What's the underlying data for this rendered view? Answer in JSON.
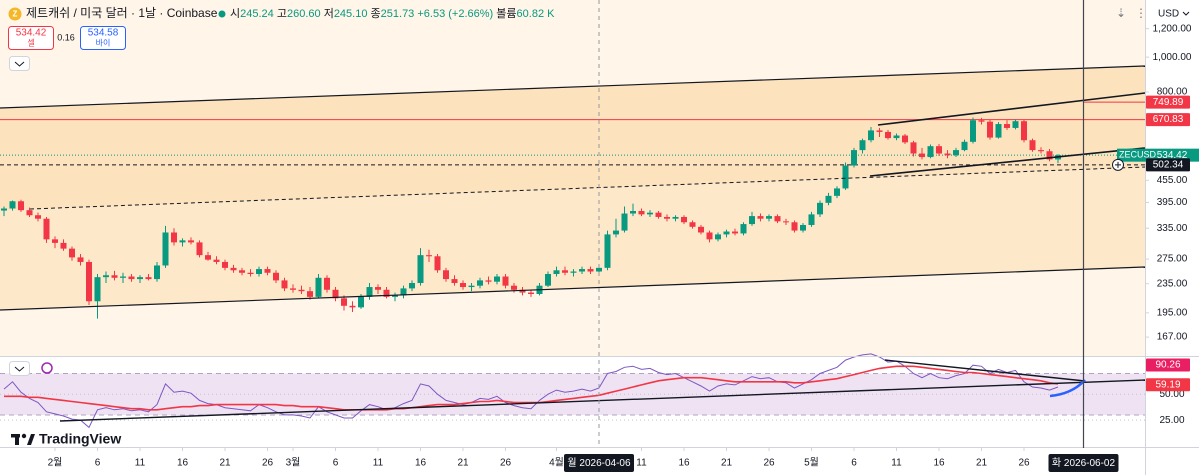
{
  "header": {
    "symbol": "제트캐쉬 / 미국 달러 · 1날 · Coinbase",
    "ohlc": [
      {
        "key": "시",
        "value": "245.24"
      },
      {
        "key": "고",
        "value": "260.60"
      },
      {
        "key": "저",
        "value": "245.10"
      },
      {
        "key": "종",
        "value": "251.73"
      }
    ],
    "change": "+6.53 (+2.66%)",
    "volume_key": "볼륨",
    "volume": "60.82 K",
    "sell": {
      "price": "534.42",
      "label": "셀"
    },
    "spread": "0.16",
    "buy": {
      "price": "534.58",
      "label": "바이"
    },
    "currency": "USD"
  },
  "watermark": "TradingView",
  "chart_data": [
    {
      "type": "candlestick",
      "log_scale": true,
      "grid": false,
      "up_color": "#089981",
      "down_color": "#f23645",
      "x": [
        "2026-01-26",
        "2026-01-27",
        "2026-01-28",
        "2026-01-29",
        "2026-01-30",
        "2026-01-31",
        "2026-02-01",
        "2026-02-02",
        "2026-02-03",
        "2026-02-04",
        "2026-02-05",
        "2026-02-06",
        "2026-02-07",
        "2026-02-08",
        "2026-02-09",
        "2026-02-10",
        "2026-02-11",
        "2026-02-12",
        "2026-02-13",
        "2026-02-14",
        "2026-02-15",
        "2026-02-16",
        "2026-02-17",
        "2026-02-18",
        "2026-02-19",
        "2026-02-20",
        "2026-02-21",
        "2026-02-22",
        "2026-02-23",
        "2026-02-24",
        "2026-02-25",
        "2026-02-26",
        "2026-02-27",
        "2026-02-28",
        "2026-03-01",
        "2026-03-02",
        "2026-03-03",
        "2026-03-04",
        "2026-03-05",
        "2026-03-06",
        "2026-03-07",
        "2026-03-08",
        "2026-03-09",
        "2026-03-10",
        "2026-03-11",
        "2026-03-12",
        "2026-03-13",
        "2026-03-14",
        "2026-03-15",
        "2026-03-16",
        "2026-03-17",
        "2026-03-18",
        "2026-03-19",
        "2026-03-20",
        "2026-03-21",
        "2026-03-22",
        "2026-03-23",
        "2026-03-24",
        "2026-03-25",
        "2026-03-26",
        "2026-03-27",
        "2026-03-28",
        "2026-03-29",
        "2026-03-30",
        "2026-03-31",
        "2026-04-01",
        "2026-04-02",
        "2026-04-03",
        "2026-04-04",
        "2026-04-05",
        "2026-04-06",
        "2026-04-07",
        "2026-04-08",
        "2026-04-09",
        "2026-04-10",
        "2026-04-11",
        "2026-04-12",
        "2026-04-13",
        "2026-04-14",
        "2026-04-15",
        "2026-04-16",
        "2026-04-17",
        "2026-04-18",
        "2026-04-19",
        "2026-04-20",
        "2026-04-21",
        "2026-04-22",
        "2026-04-23",
        "2026-04-24",
        "2026-04-25",
        "2026-04-26",
        "2026-04-27",
        "2026-04-28",
        "2026-04-29",
        "2026-04-30",
        "2026-05-01",
        "2026-05-02",
        "2026-05-03",
        "2026-05-04",
        "2026-05-05",
        "2026-05-06",
        "2026-05-07",
        "2026-05-08",
        "2026-05-09",
        "2026-05-10",
        "2026-05-11",
        "2026-05-12",
        "2026-05-13",
        "2026-05-14",
        "2026-05-15",
        "2026-05-16",
        "2026-05-17",
        "2026-05-18",
        "2026-05-19",
        "2026-05-20",
        "2026-05-21",
        "2026-05-22",
        "2026-05-23",
        "2026-05-24",
        "2026-05-25",
        "2026-05-26",
        "2026-05-27",
        "2026-05-28",
        "2026-05-29",
        "2026-05-30"
      ],
      "open": [
        375,
        380,
        398,
        376,
        364,
        356,
        312,
        305,
        294,
        278,
        270,
        210,
        245,
        248,
        244,
        246,
        242,
        245,
        242,
        264,
        326,
        306,
        310,
        306,
        282,
        274,
        270,
        260,
        256,
        252,
        250,
        258,
        252,
        240,
        228,
        226,
        224,
        216,
        244,
        226,
        214,
        204,
        202,
        216,
        230,
        226,
        216,
        218,
        228,
        236,
        282,
        280,
        256,
        242,
        236,
        230,
        232,
        240,
        238,
        246,
        232,
        226,
        222,
        220,
        232,
        250,
        256,
        252,
        254,
        258,
        254,
        260,
        322,
        330,
        368,
        374,
        366,
        370,
        360,
        356,
        360,
        348,
        338,
        326,
        312,
        322,
        328,
        324,
        344,
        362,
        356,
        362,
        350,
        348,
        330,
        342,
        366,
        394,
        412,
        432,
        500,
        552,
        588,
        626,
        620,
        596,
        606,
        580,
        540,
        528,
        566,
        540,
        534,
        552,
        582,
        668,
        662,
        598,
        652,
        636,
        664,
        588,
        552,
        548,
        520
      ],
      "high": [
        385,
        400,
        402,
        382,
        370,
        360,
        318,
        312,
        298,
        284,
        274,
        250,
        254,
        255,
        252,
        250,
        248,
        250,
        270,
        340,
        335,
        314,
        316,
        310,
        288,
        280,
        274,
        265,
        260,
        258,
        262,
        262,
        256,
        244,
        234,
        232,
        230,
        250,
        248,
        230,
        218,
        210,
        220,
        236,
        234,
        230,
        222,
        232,
        240,
        295,
        292,
        284,
        260,
        248,
        240,
        236,
        244,
        246,
        250,
        250,
        236,
        230,
        226,
        236,
        254,
        262,
        262,
        258,
        262,
        262,
        262,
        330,
        356,
        385,
        392,
        380,
        376,
        374,
        366,
        364,
        364,
        352,
        342,
        330,
        326,
        332,
        334,
        348,
        372,
        368,
        366,
        366,
        356,
        352,
        346,
        372,
        400,
        420,
        438,
        510,
        560,
        594,
        640,
        636,
        628,
        614,
        612,
        586,
        560,
        572,
        574,
        552,
        560,
        590,
        680,
        678,
        670,
        660,
        668,
        672,
        670,
        594,
        562,
        556,
        538
      ],
      "low": [
        362,
        375,
        372,
        360,
        350,
        305,
        295,
        290,
        272,
        264,
        205,
        188,
        236,
        240,
        236,
        238,
        236,
        240,
        238,
        260,
        300,
        298,
        302,
        278,
        272,
        266,
        256,
        252,
        248,
        246,
        246,
        248,
        236,
        224,
        222,
        220,
        212,
        214,
        222,
        210,
        198,
        196,
        200,
        212,
        220,
        214,
        210,
        214,
        224,
        232,
        270,
        252,
        238,
        232,
        226,
        224,
        228,
        234,
        234,
        228,
        222,
        218,
        216,
        218,
        230,
        246,
        248,
        246,
        250,
        250,
        250,
        256,
        316,
        326,
        362,
        362,
        360,
        356,
        350,
        350,
        344,
        334,
        322,
        306,
        308,
        316,
        320,
        320,
        340,
        350,
        350,
        346,
        342,
        326,
        326,
        338,
        360,
        388,
        406,
        428,
        494,
        540,
        580,
        600,
        590,
        588,
        574,
        530,
        520,
        524,
        532,
        524,
        528,
        548,
        576,
        650,
        590,
        594,
        628,
        630,
        580,
        546,
        540,
        514,
        508
      ],
      "close": [
        380,
        398,
        376,
        364,
        356,
        312,
        305,
        294,
        278,
        270,
        210,
        245,
        248,
        244,
        246,
        242,
        245,
        242,
        264,
        326,
        306,
        310,
        306,
        282,
        274,
        270,
        260,
        256,
        252,
        250,
        258,
        252,
        240,
        228,
        226,
        224,
        216,
        244,
        226,
        214,
        204,
        202,
        216,
        230,
        226,
        216,
        218,
        228,
        236,
        282,
        280,
        256,
        242,
        236,
        230,
        232,
        240,
        238,
        246,
        232,
        226,
        222,
        220,
        232,
        250,
        256,
        252,
        254,
        258,
        254,
        260,
        322,
        330,
        368,
        374,
        366,
        370,
        360,
        356,
        360,
        348,
        338,
        326,
        312,
        322,
        328,
        324,
        344,
        362,
        356,
        362,
        350,
        348,
        330,
        342,
        366,
        394,
        412,
        432,
        500,
        552,
        588,
        626,
        620,
        596,
        606,
        580,
        540,
        528,
        566,
        540,
        534,
        552,
        582,
        668,
        662,
        598,
        652,
        636,
        664,
        588,
        552,
        548,
        520,
        534.42
      ],
      "ylim": [
        148,
        1441
      ],
      "yticks": [
        {
          "value": 1200,
          "label": "1,200.00"
        },
        {
          "value": 1000,
          "label": "1,000.00"
        },
        {
          "value": 800,
          "label": "800.00"
        },
        {
          "value": 455,
          "label": "455.00"
        },
        {
          "value": 395,
          "label": "395.00"
        },
        {
          "value": 335,
          "label": "335.00"
        },
        {
          "value": 275,
          "label": "275.00"
        },
        {
          "value": 235,
          "label": "235.00"
        },
        {
          "value": 195,
          "label": "195.00"
        },
        {
          "value": 167,
          "label": "167.00"
        }
      ],
      "xticks": [
        {
          "value": "2026-02-01",
          "label": "2월"
        },
        {
          "value": "2026-02-06",
          "label": "6"
        },
        {
          "value": "2026-02-11",
          "label": "11"
        },
        {
          "value": "2026-02-16",
          "label": "16"
        },
        {
          "value": "2026-02-21",
          "label": "21"
        },
        {
          "value": "2026-02-26",
          "label": "26"
        },
        {
          "value": "2026-03-01",
          "label": "3월"
        },
        {
          "value": "2026-03-06",
          "label": "6"
        },
        {
          "value": "2026-03-11",
          "label": "11"
        },
        {
          "value": "2026-03-16",
          "label": "16"
        },
        {
          "value": "2026-03-21",
          "label": "21"
        },
        {
          "value": "2026-03-26",
          "label": "26"
        },
        {
          "value": "2026-04-01",
          "label": "4월"
        },
        {
          "value": "2026-04-11",
          "label": "11"
        },
        {
          "value": "2026-04-16",
          "label": "16"
        },
        {
          "value": "2026-04-21",
          "label": "21"
        },
        {
          "value": "2026-04-26",
          "label": "26"
        },
        {
          "value": "2026-05-01",
          "label": "5월"
        },
        {
          "value": "2026-05-06",
          "label": "6"
        },
        {
          "value": "2026-05-11",
          "label": "11"
        },
        {
          "value": "2026-05-16",
          "label": "16"
        },
        {
          "value": "2026-05-21",
          "label": "21"
        },
        {
          "value": "2026-05-26",
          "label": "26"
        }
      ],
      "crosshairs": [
        {
          "value": "2026-04-06",
          "label": "월 2026-04-06",
          "style": "dashed"
        },
        {
          "value": "2026-06-02",
          "label": "화 2026-06-02",
          "style": "solid"
        }
      ],
      "price_lines": [
        {
          "value": 749.89,
          "color": "#f23645",
          "style": "from-crosshair"
        },
        {
          "value": 670.83,
          "color": "#f23645",
          "style": "solid"
        },
        {
          "value": 534.42,
          "color": "#089981",
          "style": "dotted",
          "name": "ZECUSD"
        },
        {
          "value": 502.34,
          "color": "#131722",
          "style": "dashed"
        }
      ]
    },
    {
      "type": "line",
      "ylim": [
        0,
        85
      ],
      "yticks": [
        {
          "value": 50,
          "label": "50.00"
        },
        {
          "value": 25,
          "label": "25.00"
        }
      ],
      "band": [
        30,
        70
      ],
      "series": [
        {
          "color": "#7e57c2",
          "values": [
            55,
            62,
            52,
            46,
            42,
            33,
            31,
            29,
            26,
            25,
            18,
            35,
            37,
            35,
            36,
            34,
            35,
            33,
            40,
            60,
            52,
            53,
            51,
            44,
            41,
            40,
            37,
            36,
            35,
            34,
            40,
            37,
            33,
            30,
            30,
            29,
            27,
            38,
            33,
            30,
            27,
            27,
            34,
            40,
            38,
            35,
            37,
            41,
            44,
            60,
            58,
            50,
            44,
            42,
            40,
            42,
            46,
            45,
            48,
            42,
            39,
            37,
            36,
            44,
            50,
            54,
            52,
            53,
            55,
            53,
            56,
            70,
            72,
            76,
            77,
            74,
            75,
            71,
            69,
            70,
            66,
            62,
            58,
            53,
            58,
            60,
            59,
            63,
            67,
            65,
            66,
            62,
            61,
            56,
            60,
            64,
            70,
            73,
            76,
            83,
            86,
            88,
            89,
            86,
            81,
            82,
            77,
            70,
            66,
            70,
            66,
            65,
            68,
            70,
            78,
            77,
            70,
            74,
            71,
            73,
            62,
            57,
            56,
            54,
            57
          ]
        },
        {
          "color": "#f23645",
          "values": [
            48,
            48,
            48,
            47,
            47,
            46,
            45,
            44,
            43,
            42,
            41,
            40,
            39,
            38,
            37,
            36,
            36,
            35,
            35,
            36,
            37,
            38,
            38,
            39,
            39,
            40,
            40,
            40,
            40,
            40,
            40,
            40,
            40,
            39,
            39,
            38,
            38,
            38,
            37,
            36,
            35,
            35,
            35,
            35,
            35,
            35,
            36,
            36,
            37,
            38,
            39,
            40,
            40,
            40,
            41,
            42,
            43,
            43,
            44,
            43,
            42,
            42,
            42,
            42,
            43,
            44,
            45,
            46,
            47,
            48,
            49,
            51,
            53,
            55,
            57,
            59,
            61,
            63,
            64,
            65,
            66,
            66,
            66,
            65,
            64,
            63,
            62,
            62,
            62,
            62,
            62,
            62,
            62,
            61,
            61,
            62,
            63,
            64,
            65,
            67,
            69,
            71,
            73,
            75,
            76,
            77,
            77,
            77,
            76,
            75,
            74,
            73,
            72,
            71,
            71,
            70,
            69,
            68,
            67,
            66,
            65,
            64,
            63,
            61,
            60
          ]
        }
      ],
      "last_labels": [
        {
          "value": 90.26,
          "color": "#e91e63"
        },
        {
          "value": 59.19,
          "color": "#f23645"
        }
      ]
    }
  ]
}
